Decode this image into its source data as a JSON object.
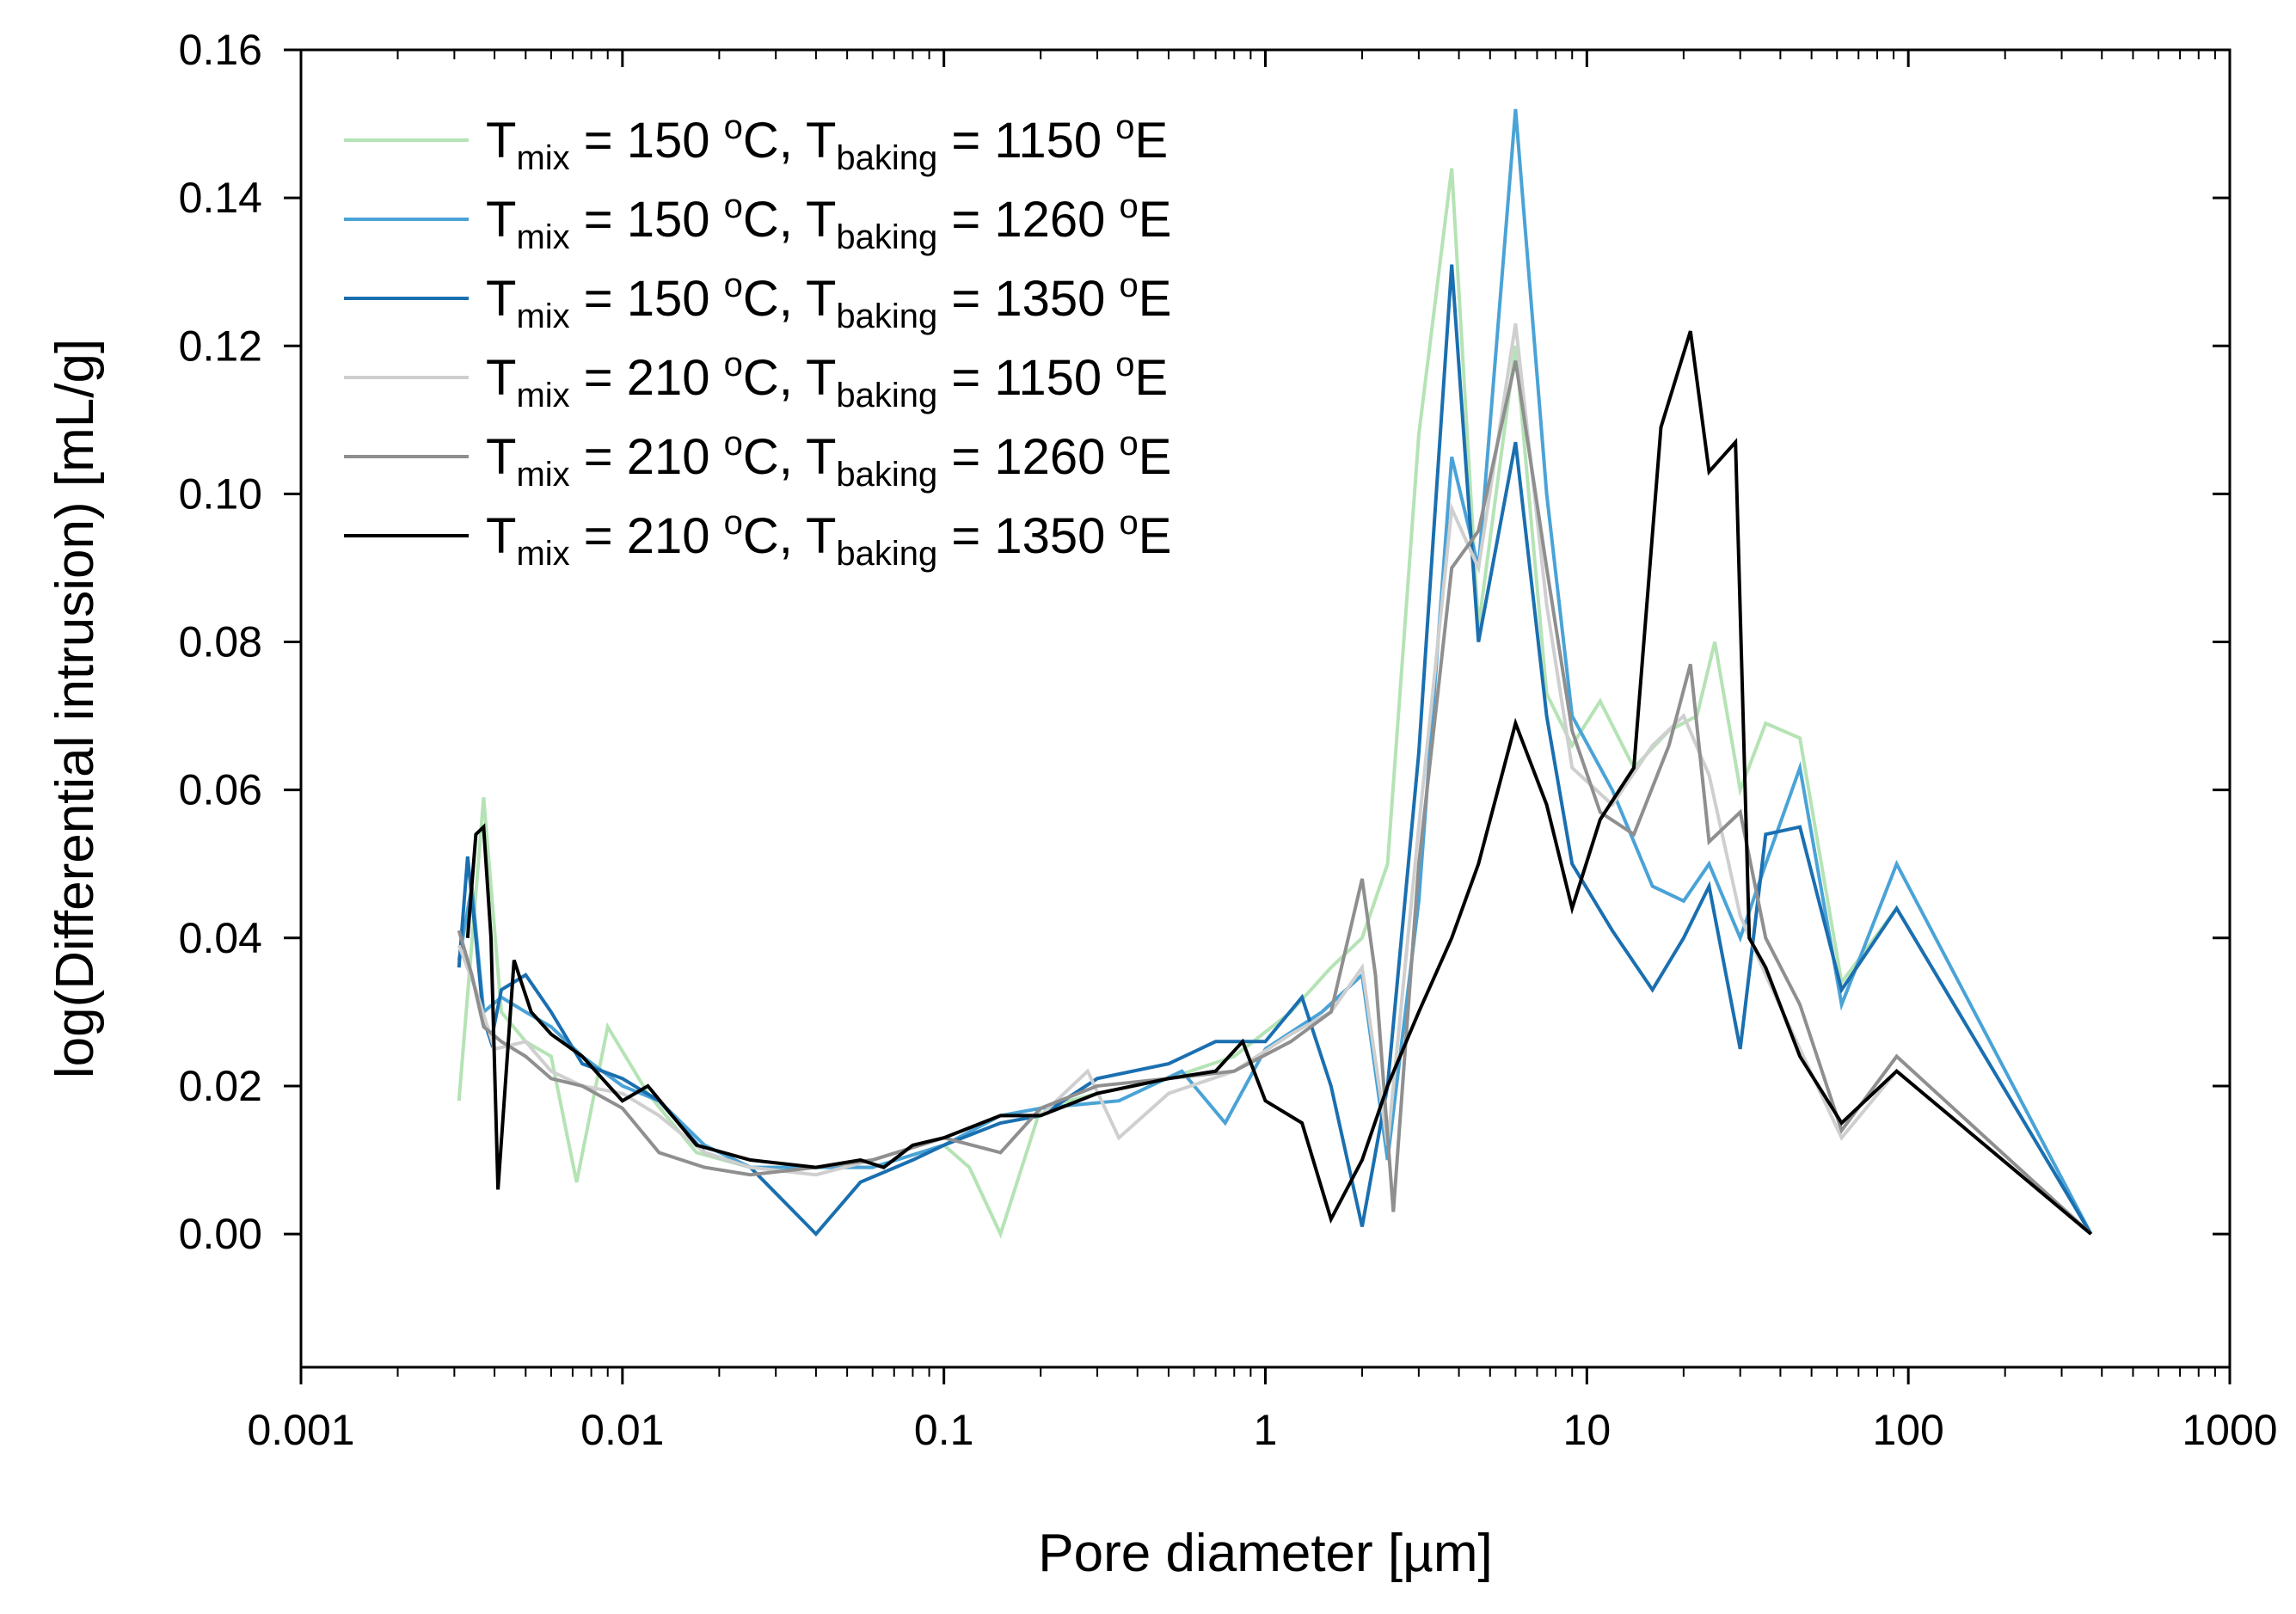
{
  "chart_data": {
    "type": "line",
    "title": "",
    "xlabel": "Pore diameter [µm]",
    "ylabel": "log(Differential intrusion) [mL/g]",
    "xscale": "log",
    "xlim": [
      0.001,
      1000
    ],
    "ylim": [
      -0.018,
      0.16
    ],
    "x_tick_labels": [
      "0.001",
      "0.01",
      "0.1",
      "1",
      "10",
      "100",
      "1000"
    ],
    "x_tick_values": [
      0.001,
      0.01,
      0.1,
      1,
      10,
      100,
      1000
    ],
    "y_tick_labels": [
      "0.00",
      "0.02",
      "0.04",
      "0.06",
      "0.08",
      "0.10",
      "0.12",
      "0.14",
      "0.16"
    ],
    "y_tick_values": [
      0.0,
      0.02,
      0.04,
      0.06,
      0.08,
      0.1,
      0.12,
      0.14,
      0.16
    ],
    "legend_position": "top-left",
    "series": [
      {
        "name": "T_mix = 150 °C, T_baking = 1150 °E",
        "legend": {
          "base": "T",
          "sub1": "mix",
          "mid": " = 150 ",
          "sup1": "o",
          "mid2": "C, T",
          "sub2": "baking",
          "mid3": " = 1150 ",
          "sup2": "o",
          "end": "E"
        },
        "color": "#b5e3b5",
        "x": [
          0.0031,
          0.0035,
          0.0037,
          0.0042,
          0.005,
          0.006,
          0.0072,
          0.009,
          0.012,
          0.017,
          0.025,
          0.04,
          0.06,
          0.1,
          0.12,
          0.15,
          0.2,
          0.3,
          0.5,
          0.8,
          1.2,
          1.6,
          2.0,
          2.4,
          3.0,
          3.8,
          4.6,
          6.0,
          7.5,
          9.0,
          11.0,
          14.0,
          18.0,
          22.0,
          25.0,
          30.0,
          36.0,
          46.0,
          62.0,
          92.0,
          370.0
        ],
        "y": [
          0.018,
          0.046,
          0.059,
          0.03,
          0.026,
          0.024,
          0.007,
          0.028,
          0.019,
          0.011,
          0.009,
          0.009,
          0.009,
          0.012,
          0.009,
          0.0,
          0.017,
          0.019,
          0.021,
          0.024,
          0.03,
          0.036,
          0.04,
          0.05,
          0.108,
          0.144,
          0.082,
          0.12,
          0.073,
          0.066,
          0.072,
          0.063,
          0.068,
          0.07,
          0.08,
          0.06,
          0.069,
          0.067,
          0.034,
          0.044,
          0.0
        ]
      },
      {
        "name": "T_mix = 150 °C, T_baking = 1260 °E",
        "legend": {
          "base": "T",
          "sub1": "mix",
          "mid": " = 150 ",
          "sup1": "o",
          "mid2": "C, T",
          "sub2": "baking",
          "mid3": " = 1260 ",
          "sup2": "o",
          "end": "E"
        },
        "color": "#4aa3d6",
        "x": [
          0.0031,
          0.0034,
          0.0037,
          0.0042,
          0.005,
          0.006,
          0.0075,
          0.01,
          0.013,
          0.018,
          0.025,
          0.04,
          0.06,
          0.1,
          0.15,
          0.2,
          0.35,
          0.55,
          0.75,
          1.0,
          1.5,
          2.0,
          2.4,
          3.0,
          3.8,
          4.6,
          6.0,
          7.5,
          9.0,
          12.0,
          16.0,
          20.0,
          24.0,
          30.0,
          36.0,
          46.0,
          62.0,
          92.0,
          370.0
        ],
        "y": [
          0.037,
          0.047,
          0.03,
          0.032,
          0.03,
          0.028,
          0.024,
          0.02,
          0.018,
          0.012,
          0.009,
          0.009,
          0.009,
          0.012,
          0.016,
          0.017,
          0.018,
          0.022,
          0.015,
          0.025,
          0.03,
          0.035,
          0.01,
          0.045,
          0.105,
          0.09,
          0.152,
          0.1,
          0.07,
          0.06,
          0.047,
          0.045,
          0.05,
          0.04,
          0.05,
          0.063,
          0.031,
          0.05,
          0.0
        ]
      },
      {
        "name": "T_mix = 150 °C, T_baking = 1350 °E",
        "legend": {
          "base": "T",
          "sub1": "mix",
          "mid": " = 150 ",
          "sup1": "o",
          "mid2": "C, T",
          "sub2": "baking",
          "mid3": " = 1350 ",
          "sup2": "o",
          "end": "E"
        },
        "color": "#1a6fb0",
        "x": [
          0.0031,
          0.0033,
          0.0035,
          0.0037,
          0.0039,
          0.0042,
          0.005,
          0.006,
          0.0075,
          0.01,
          0.013,
          0.018,
          0.025,
          0.04,
          0.055,
          0.08,
          0.1,
          0.15,
          0.2,
          0.3,
          0.5,
          0.7,
          1.0,
          1.3,
          1.6,
          2.0,
          2.4,
          3.0,
          3.8,
          4.6,
          6.0,
          7.5,
          9.0,
          12.0,
          16.0,
          20.0,
          24.0,
          30.0,
          36.0,
          46.0,
          62.0,
          92.0,
          370.0
        ],
        "y": [
          0.036,
          0.051,
          0.04,
          0.029,
          0.026,
          0.033,
          0.035,
          0.03,
          0.023,
          0.021,
          0.018,
          0.011,
          0.009,
          0.0,
          0.007,
          0.01,
          0.012,
          0.015,
          0.016,
          0.021,
          0.023,
          0.026,
          0.026,
          0.032,
          0.02,
          0.001,
          0.02,
          0.065,
          0.131,
          0.08,
          0.107,
          0.07,
          0.05,
          0.041,
          0.033,
          0.04,
          0.047,
          0.025,
          0.054,
          0.055,
          0.033,
          0.044,
          0.0
        ]
      },
      {
        "name": "T_mix = 210 °C, T_baking = 1150 °E",
        "legend": {
          "base": "T",
          "sub1": "mix",
          "mid": " = 210 ",
          "sup1": "o",
          "mid2": "C, T",
          "sub2": "baking",
          "mid3": " = 1150 ",
          "sup2": "o",
          "end": "E"
        },
        "color": "#cfcfcf",
        "x": [
          0.0031,
          0.0035,
          0.004,
          0.005,
          0.006,
          0.0075,
          0.01,
          0.013,
          0.018,
          0.025,
          0.04,
          0.06,
          0.1,
          0.15,
          0.2,
          0.28,
          0.35,
          0.5,
          0.8,
          1.2,
          1.6,
          2.0,
          2.4,
          3.0,
          3.8,
          4.6,
          6.0,
          7.5,
          9.0,
          12.0,
          16.0,
          20.0,
          24.0,
          30.0,
          36.0,
          46.0,
          62.0,
          92.0,
          370.0
        ],
        "y": [
          0.039,
          0.033,
          0.025,
          0.026,
          0.022,
          0.02,
          0.019,
          0.016,
          0.011,
          0.009,
          0.008,
          0.01,
          0.013,
          0.016,
          0.016,
          0.022,
          0.013,
          0.019,
          0.022,
          0.027,
          0.03,
          0.036,
          0.012,
          0.055,
          0.098,
          0.09,
          0.123,
          0.085,
          0.063,
          0.058,
          0.066,
          0.07,
          0.062,
          0.043,
          0.035,
          0.025,
          0.013,
          0.022,
          0.0
        ]
      },
      {
        "name": "T_mix = 210 °C, T_baking = 1260 °E",
        "legend": {
          "base": "T",
          "sub1": "mix",
          "mid": " = 210 ",
          "sup1": "o",
          "mid2": "C, T",
          "sub2": "baking",
          "mid3": " = 1260 ",
          "sup2": "o",
          "end": "E"
        },
        "color": "#8f8f8f",
        "x": [
          0.0031,
          0.0034,
          0.0037,
          0.0042,
          0.005,
          0.006,
          0.0075,
          0.01,
          0.013,
          0.018,
          0.025,
          0.04,
          0.06,
          0.1,
          0.15,
          0.2,
          0.3,
          0.5,
          0.8,
          1.2,
          1.6,
          2.0,
          2.2,
          2.5,
          3.0,
          3.8,
          4.6,
          6.0,
          7.5,
          9.0,
          11.0,
          14.0,
          18.0,
          21.0,
          24.0,
          30.0,
          36.0,
          46.0,
          62.0,
          92.0,
          370.0
        ],
        "y": [
          0.041,
          0.035,
          0.028,
          0.026,
          0.024,
          0.021,
          0.02,
          0.017,
          0.011,
          0.009,
          0.008,
          0.009,
          0.01,
          0.013,
          0.011,
          0.017,
          0.02,
          0.021,
          0.022,
          0.026,
          0.03,
          0.048,
          0.035,
          0.003,
          0.05,
          0.09,
          0.095,
          0.118,
          0.09,
          0.068,
          0.057,
          0.054,
          0.066,
          0.077,
          0.053,
          0.057,
          0.04,
          0.031,
          0.014,
          0.024,
          0.0
        ]
      },
      {
        "name": "T_mix = 210 °C, T_baking = 1350 °E",
        "legend": {
          "base": "T",
          "sub1": "mix",
          "mid": " = 210 ",
          "sup1": "o",
          "mid2": "C, T",
          "sub2": "baking",
          "mid3": " = 1350 ",
          "sup2": "o",
          "end": "E"
        },
        "color": "#000000",
        "x": [
          0.0033,
          0.0035,
          0.0037,
          0.0039,
          0.0041,
          0.0046,
          0.0052,
          0.006,
          0.0075,
          0.01,
          0.012,
          0.017,
          0.025,
          0.04,
          0.055,
          0.065,
          0.08,
          0.1,
          0.15,
          0.2,
          0.3,
          0.5,
          0.7,
          0.85,
          1.0,
          1.3,
          1.6,
          2.0,
          2.4,
          3.0,
          3.8,
          4.6,
          6.0,
          7.5,
          9.0,
          11.0,
          14.0,
          17.0,
          21.0,
          24.0,
          29.0,
          32.0,
          36.0,
          46.0,
          62.0,
          92.0,
          370.0
        ],
        "y": [
          0.04,
          0.054,
          0.055,
          0.04,
          0.006,
          0.037,
          0.03,
          0.027,
          0.024,
          0.018,
          0.02,
          0.012,
          0.01,
          0.009,
          0.01,
          0.009,
          0.012,
          0.013,
          0.016,
          0.016,
          0.019,
          0.021,
          0.022,
          0.026,
          0.018,
          0.015,
          0.002,
          0.01,
          0.02,
          0.03,
          0.04,
          0.05,
          0.069,
          0.058,
          0.044,
          0.056,
          0.063,
          0.109,
          0.122,
          0.103,
          0.107,
          0.04,
          0.036,
          0.024,
          0.015,
          0.022,
          0.0
        ]
      }
    ]
  }
}
